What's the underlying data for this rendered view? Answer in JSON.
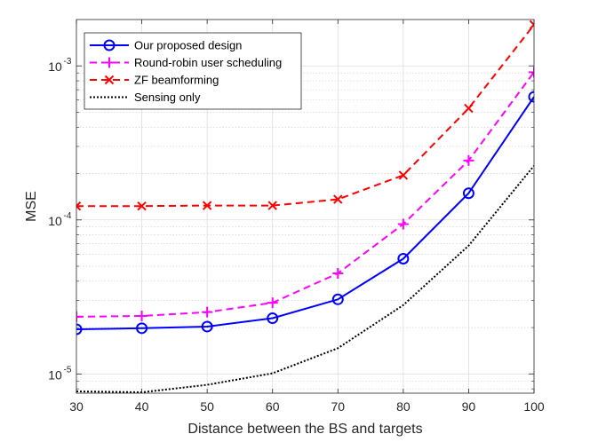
{
  "chart_data": {
    "type": "line",
    "title": "",
    "xlabel": "Distance between the BS and targets",
    "ylabel": "MSE",
    "yscale": "log",
    "xlim": [
      30,
      100
    ],
    "ylim": [
      7.5e-06,
      0.002
    ],
    "grid": true,
    "legend_position": "top-left",
    "x": [
      30,
      40,
      50,
      60,
      70,
      80,
      90,
      100
    ],
    "xticks": [
      30,
      40,
      50,
      60,
      70,
      80,
      90,
      100
    ],
    "yticks": [
      {
        "value": 1e-05,
        "base": "10",
        "exp": "-5"
      },
      {
        "value": 0.0001,
        "base": "10",
        "exp": "-4"
      },
      {
        "value": 0.001,
        "base": "10",
        "exp": "-3"
      }
    ],
    "series": [
      {
        "name": "Our proposed design",
        "color": "#0000ff",
        "dash": "solid",
        "marker": "circle",
        "values": [
          1.95e-05,
          1.98e-05,
          2.03e-05,
          2.3e-05,
          3.05e-05,
          5.6e-05,
          0.000149,
          0.00063
        ]
      },
      {
        "name": "Round-robin user scheduling",
        "color": "#ff00ff",
        "dash": "dashed",
        "marker": "plus",
        "values": [
          2.35e-05,
          2.38e-05,
          2.52e-05,
          2.9e-05,
          4.5e-05,
          9.4e-05,
          0.000243,
          0.00091
        ]
      },
      {
        "name": "ZF beamforming",
        "color": "#ff0000",
        "dash": "dashed",
        "marker": "x",
        "values": [
          0.000123,
          0.000123,
          0.000124,
          0.000124,
          0.000136,
          0.000195,
          0.00053,
          0.00185
        ]
      },
      {
        "name": "Sensing only",
        "color": "#000000",
        "dash": "dotted",
        "marker": "none",
        "values": [
          7.7e-06,
          7.6e-06,
          8.5e-06,
          1.01e-05,
          1.47e-05,
          2.8e-05,
          6.8e-05,
          0.000225
        ]
      }
    ]
  }
}
